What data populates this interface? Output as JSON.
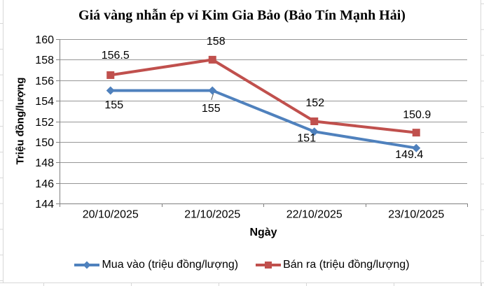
{
  "chart_data": {
    "type": "line",
    "title": "Giá vàng nhẫn ép vỉ Kim Gia Bảo (Bảo Tín Mạnh Hải)",
    "xlabel": "Ngày",
    "ylabel": "Triệu đồng/lượng",
    "categories": [
      "20/10/2025",
      "21/10/2025",
      "22/10/2025",
      "23/10/2025"
    ],
    "series": [
      {
        "name": "Mua vào (triệu đồng/lượng)",
        "color": "#4F81BD",
        "marker": "diamond",
        "values": [
          155,
          155,
          151,
          149.4
        ],
        "data_labels": [
          "155",
          "155",
          "151",
          "149.4"
        ],
        "label_position": "below"
      },
      {
        "name": "Bán ra (triệu đồng/lượng)",
        "color": "#C0504D",
        "marker": "square",
        "values": [
          156.5,
          158,
          152,
          150.9
        ],
        "data_labels": [
          "156.5",
          "158",
          "152",
          "150.9"
        ],
        "label_position": "above"
      }
    ],
    "ylim": [
      144,
      160
    ],
    "ytick_step": 2,
    "grid": true,
    "legend_position": "bottom"
  },
  "colors": {
    "gridline": "#969696",
    "axis": "#808080",
    "label_text": "#000000",
    "worksheet_gridline": "#d7d7d7"
  }
}
